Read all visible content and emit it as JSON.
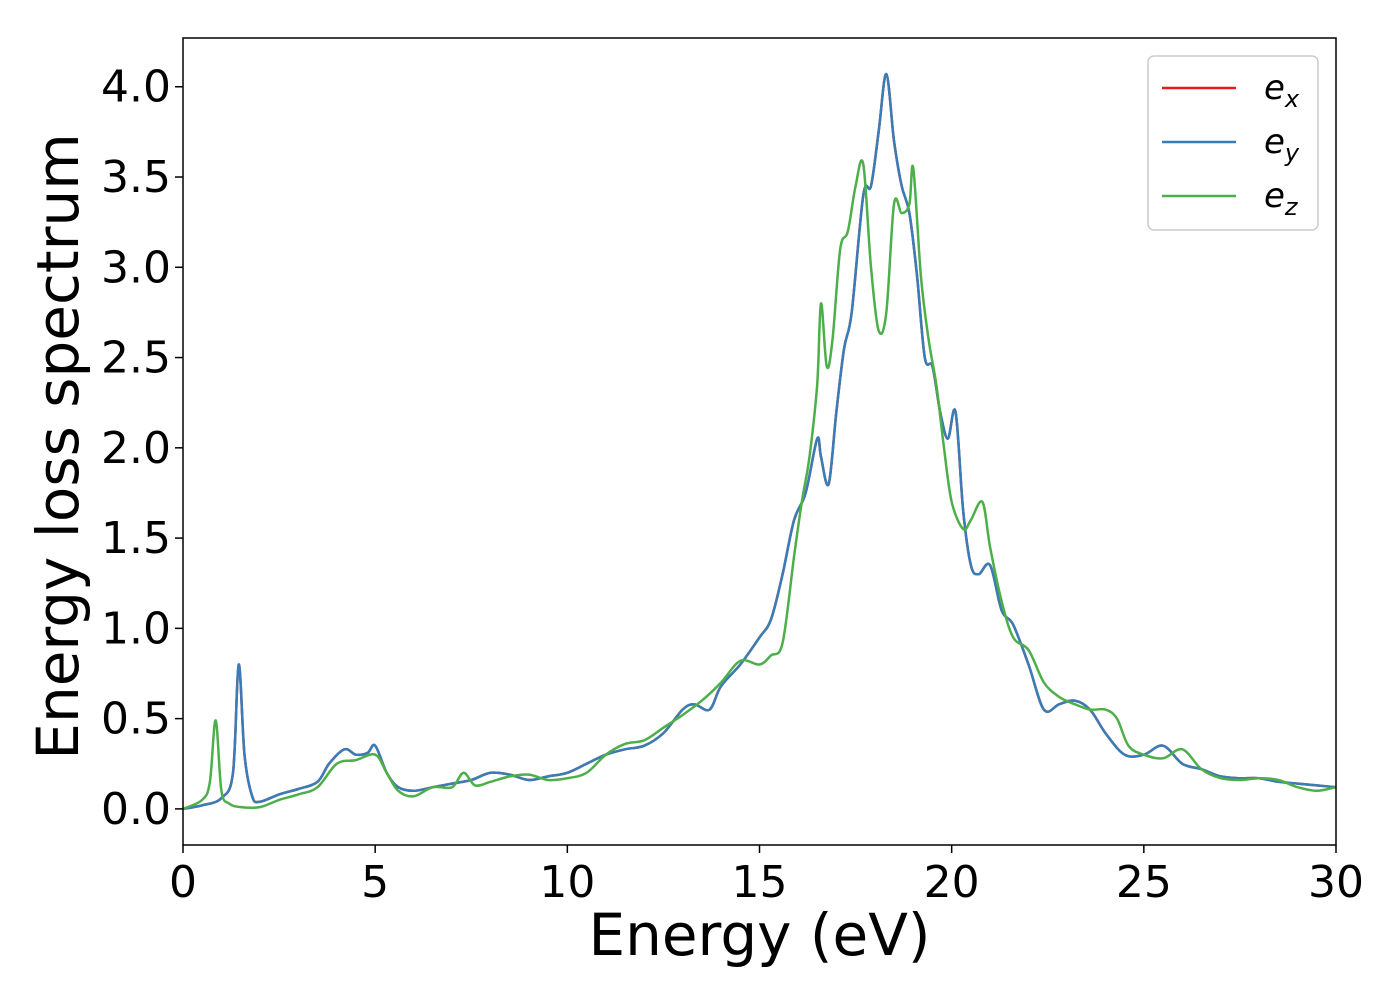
{
  "chart_data": {
    "type": "line",
    "title": "",
    "xlabel": "Energy (eV)",
    "ylabel": "Energy loss spectrum",
    "xlim": [
      0,
      30
    ],
    "ylim": [
      -0.2,
      4.27
    ],
    "xticks": [
      0,
      5,
      10,
      15,
      20,
      25,
      30
    ],
    "yticks": [
      0.0,
      0.5,
      1.0,
      1.5,
      2.0,
      2.5,
      3.0,
      3.5,
      4.0
    ],
    "xtick_labels": [
      "0",
      "5",
      "10",
      "15",
      "20",
      "25",
      "30"
    ],
    "ytick_labels": [
      "0.0",
      "0.5",
      "1.0",
      "1.5",
      "2.0",
      "2.5",
      "3.0",
      "3.5",
      "4.0"
    ],
    "grid": false,
    "legend": "top-right",
    "series": [
      {
        "name": "e_x",
        "label_base": "e",
        "label_sub": "x",
        "color": "#e41a1c",
        "x": [
          0,
          0.5,
          1.0,
          1.3,
          1.45,
          1.6,
          1.8,
          2.0,
          2.5,
          3.0,
          3.5,
          3.8,
          4.2,
          4.5,
          4.8,
          5.0,
          5.3,
          5.6,
          6.0,
          6.5,
          7.0,
          7.5,
          8.0,
          8.5,
          9.0,
          9.5,
          10.0,
          10.5,
          11.0,
          11.5,
          12.0,
          12.5,
          13.0,
          13.3,
          13.7,
          14.0,
          14.5,
          15.0,
          15.3,
          15.6,
          15.9,
          16.2,
          16.5,
          16.6,
          16.8,
          17.0,
          17.2,
          17.4,
          17.7,
          17.9,
          18.1,
          18.3,
          18.5,
          18.7,
          18.9,
          19.1,
          19.3,
          19.5,
          19.7,
          19.9,
          20.1,
          20.3,
          20.5,
          20.7,
          21.0,
          21.3,
          21.6,
          22.0,
          22.4,
          22.8,
          23.2,
          23.6,
          24.0,
          24.5,
          25.0,
          25.5,
          26.0,
          26.5,
          27.0,
          27.5,
          28.0,
          28.5,
          29.0,
          29.5,
          30.0
        ],
        "y": [
          0.0,
          0.02,
          0.06,
          0.2,
          0.8,
          0.3,
          0.07,
          0.04,
          0.08,
          0.11,
          0.15,
          0.25,
          0.33,
          0.3,
          0.31,
          0.35,
          0.2,
          0.12,
          0.1,
          0.12,
          0.14,
          0.16,
          0.2,
          0.19,
          0.16,
          0.18,
          0.2,
          0.25,
          0.3,
          0.33,
          0.35,
          0.42,
          0.55,
          0.58,
          0.55,
          0.68,
          0.8,
          0.95,
          1.05,
          1.3,
          1.6,
          1.75,
          2.05,
          1.95,
          1.8,
          2.2,
          2.55,
          2.75,
          3.4,
          3.45,
          3.75,
          4.07,
          3.7,
          3.45,
          3.3,
          2.95,
          2.5,
          2.45,
          2.2,
          2.05,
          2.2,
          1.65,
          1.35,
          1.3,
          1.35,
          1.1,
          1.02,
          0.8,
          0.55,
          0.58,
          0.6,
          0.55,
          0.42,
          0.3,
          0.3,
          0.35,
          0.25,
          0.22,
          0.18,
          0.17,
          0.17,
          0.15,
          0.14,
          0.13,
          0.12
        ]
      },
      {
        "name": "e_y",
        "label_base": "e",
        "label_sub": "y",
        "color": "#377eb8",
        "x": [
          0,
          0.5,
          1.0,
          1.3,
          1.45,
          1.6,
          1.8,
          2.0,
          2.5,
          3.0,
          3.5,
          3.8,
          4.2,
          4.5,
          4.8,
          5.0,
          5.3,
          5.6,
          6.0,
          6.5,
          7.0,
          7.5,
          8.0,
          8.5,
          9.0,
          9.5,
          10.0,
          10.5,
          11.0,
          11.5,
          12.0,
          12.5,
          13.0,
          13.3,
          13.7,
          14.0,
          14.5,
          15.0,
          15.3,
          15.6,
          15.9,
          16.2,
          16.5,
          16.6,
          16.8,
          17.0,
          17.2,
          17.4,
          17.7,
          17.9,
          18.1,
          18.3,
          18.5,
          18.7,
          18.9,
          19.1,
          19.3,
          19.5,
          19.7,
          19.9,
          20.1,
          20.3,
          20.5,
          20.7,
          21.0,
          21.3,
          21.6,
          22.0,
          22.4,
          22.8,
          23.2,
          23.6,
          24.0,
          24.5,
          25.0,
          25.5,
          26.0,
          26.5,
          27.0,
          27.5,
          28.0,
          28.5,
          29.0,
          29.5,
          30.0
        ],
        "y": [
          0.0,
          0.02,
          0.06,
          0.2,
          0.8,
          0.3,
          0.07,
          0.04,
          0.08,
          0.11,
          0.15,
          0.25,
          0.33,
          0.3,
          0.31,
          0.35,
          0.2,
          0.12,
          0.1,
          0.12,
          0.14,
          0.16,
          0.2,
          0.19,
          0.16,
          0.18,
          0.2,
          0.25,
          0.3,
          0.33,
          0.35,
          0.42,
          0.55,
          0.58,
          0.55,
          0.68,
          0.8,
          0.95,
          1.05,
          1.3,
          1.6,
          1.75,
          2.05,
          1.95,
          1.8,
          2.2,
          2.55,
          2.75,
          3.4,
          3.45,
          3.75,
          4.07,
          3.7,
          3.45,
          3.3,
          2.95,
          2.5,
          2.45,
          2.2,
          2.05,
          2.2,
          1.65,
          1.35,
          1.3,
          1.35,
          1.1,
          1.02,
          0.8,
          0.55,
          0.58,
          0.6,
          0.55,
          0.42,
          0.3,
          0.3,
          0.35,
          0.25,
          0.22,
          0.18,
          0.17,
          0.17,
          0.15,
          0.14,
          0.13,
          0.12
        ]
      },
      {
        "name": "e_z",
        "label_base": "e",
        "label_sub": "z",
        "color": "#4daf4a",
        "x": [
          0,
          0.5,
          0.7,
          0.85,
          1.0,
          1.2,
          1.5,
          2.0,
          2.5,
          3.0,
          3.5,
          4.0,
          4.5,
          5.0,
          5.3,
          5.6,
          6.0,
          6.5,
          7.0,
          7.3,
          7.6,
          8.0,
          8.5,
          9.0,
          9.5,
          10.0,
          10.5,
          11.0,
          11.5,
          12.0,
          12.5,
          13.0,
          13.5,
          14.0,
          14.5,
          15.0,
          15.3,
          15.6,
          15.9,
          16.1,
          16.3,
          16.5,
          16.6,
          16.75,
          16.9,
          17.1,
          17.3,
          17.5,
          17.7,
          17.9,
          18.1,
          18.3,
          18.5,
          18.7,
          18.9,
          19.0,
          19.2,
          19.4,
          19.6,
          19.8,
          20.0,
          20.3,
          20.5,
          20.8,
          21.0,
          21.3,
          21.6,
          22.0,
          22.4,
          22.8,
          23.2,
          23.6,
          24.0,
          24.3,
          24.6,
          25.0,
          25.5,
          26.0,
          26.5,
          27.0,
          27.5,
          28.0,
          28.5,
          29.0,
          29.5,
          30.0
        ],
        "y": [
          0.0,
          0.05,
          0.15,
          0.49,
          0.1,
          0.03,
          0.01,
          0.01,
          0.05,
          0.08,
          0.12,
          0.25,
          0.27,
          0.3,
          0.2,
          0.1,
          0.07,
          0.12,
          0.12,
          0.2,
          0.13,
          0.15,
          0.18,
          0.19,
          0.16,
          0.17,
          0.2,
          0.3,
          0.36,
          0.38,
          0.45,
          0.52,
          0.6,
          0.7,
          0.82,
          0.8,
          0.85,
          0.92,
          1.4,
          1.7,
          1.95,
          2.35,
          2.8,
          2.45,
          2.6,
          3.1,
          3.2,
          3.45,
          3.57,
          3.0,
          2.65,
          2.75,
          3.35,
          3.3,
          3.35,
          3.55,
          2.95,
          2.6,
          2.35,
          2.0,
          1.7,
          1.55,
          1.6,
          1.7,
          1.45,
          1.15,
          0.95,
          0.88,
          0.7,
          0.62,
          0.58,
          0.55,
          0.55,
          0.5,
          0.35,
          0.3,
          0.28,
          0.33,
          0.22,
          0.17,
          0.16,
          0.17,
          0.16,
          0.12,
          0.1,
          0.12
        ]
      }
    ]
  }
}
